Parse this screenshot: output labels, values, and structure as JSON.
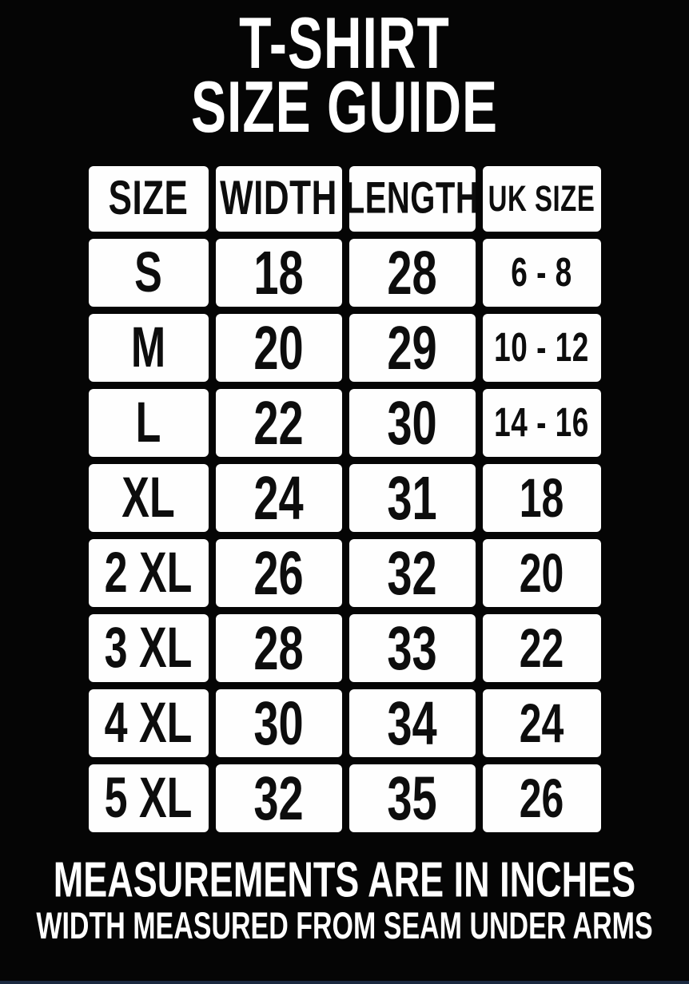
{
  "header": {
    "title_line1": "T-SHIRT",
    "title_line2": "SIZE GUIDE"
  },
  "footer": {
    "note1": "MEASUREMENTS ARE IN INCHES",
    "note2": "WIDTH MEASURED FROM SEAM UNDER ARMS"
  },
  "colors": {
    "background": "#050505",
    "cell_background": "#fefefe",
    "cell_text": "#0d0d0d",
    "page_text": "#ffffff",
    "bottom_edge_line": "#1b2940"
  },
  "chart_data": {
    "type": "table",
    "title": "T-SHIRT SIZE GUIDE",
    "units": "inches",
    "columns": [
      "SIZE",
      "WIDTH",
      "LENGTH",
      "UK SIZE"
    ],
    "rows": [
      [
        "S",
        "18",
        "28",
        "6 - 8"
      ],
      [
        "M",
        "20",
        "29",
        "10 - 12"
      ],
      [
        "L",
        "22",
        "30",
        "14 - 16"
      ],
      [
        "XL",
        "24",
        "31",
        "18"
      ],
      [
        "2 XL",
        "26",
        "32",
        "20"
      ],
      [
        "3 XL",
        "28",
        "33",
        "22"
      ],
      [
        "4 XL",
        "30",
        "34",
        "24"
      ],
      [
        "5 XL",
        "32",
        "35",
        "26"
      ]
    ],
    "notes": [
      "MEASUREMENTS ARE IN INCHES",
      "WIDTH MEASURED FROM SEAM UNDER ARMS"
    ]
  }
}
